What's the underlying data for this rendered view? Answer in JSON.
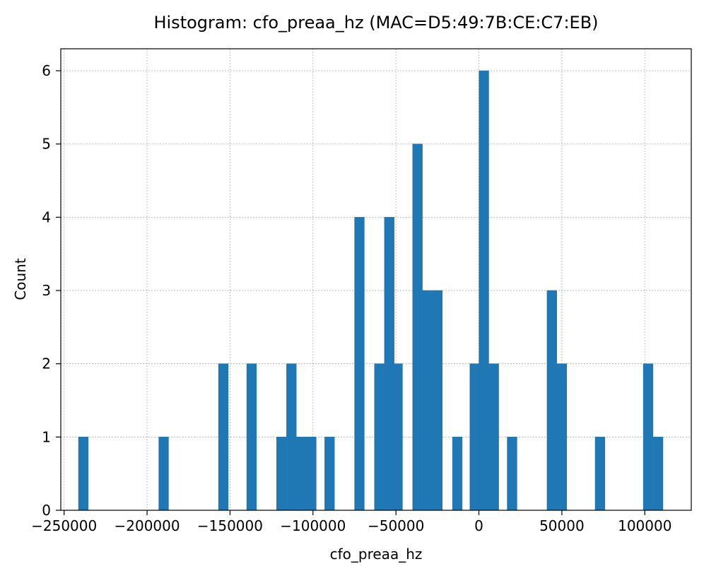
{
  "chart_data": {
    "type": "bar",
    "title": "Histogram: cfo_preaa_hz (MAC=D5:49:7B:CE:C7:EB)",
    "xlabel": "cfo_preaa_hz",
    "ylabel": "Count",
    "xlim": [
      -252000,
      128000
    ],
    "ylim": [
      0,
      6.3
    ],
    "x_ticks": [
      -250000,
      -200000,
      -150000,
      -100000,
      -50000,
      0,
      50000,
      100000
    ],
    "x_tick_labels": [
      "−250000",
      "−200000",
      "−150000",
      "−100000",
      "−50000",
      "0",
      "50000",
      "100000"
    ],
    "y_ticks": [
      0,
      1,
      2,
      3,
      4,
      5,
      6
    ],
    "y_tick_labels": [
      "0",
      "1",
      "2",
      "3",
      "4",
      "5",
      "6"
    ],
    "grid": true,
    "bar_color": "#1f77b4",
    "bin_width": 5850,
    "bins": [
      {
        "x": -238400,
        "count": 1
      },
      {
        "x": -190000,
        "count": 1
      },
      {
        "x": -154000,
        "count": 2
      },
      {
        "x": -137000,
        "count": 2
      },
      {
        "x": -119000,
        "count": 1
      },
      {
        "x": -113000,
        "count": 2
      },
      {
        "x": -107000,
        "count": 1
      },
      {
        "x": -101000,
        "count": 1
      },
      {
        "x": -90000,
        "count": 1
      },
      {
        "x": -72000,
        "count": 4
      },
      {
        "x": -60000,
        "count": 2
      },
      {
        "x": -54000,
        "count": 4
      },
      {
        "x": -49000,
        "count": 2
      },
      {
        "x": -37000,
        "count": 5
      },
      {
        "x": -31000,
        "count": 3
      },
      {
        "x": -25000,
        "count": 3
      },
      {
        "x": -13000,
        "count": 1
      },
      {
        "x": -2500,
        "count": 2
      },
      {
        "x": 3000,
        "count": 6
      },
      {
        "x": 9000,
        "count": 2
      },
      {
        "x": 20000,
        "count": 1
      },
      {
        "x": 44000,
        "count": 3
      },
      {
        "x": 50000,
        "count": 2
      },
      {
        "x": 73000,
        "count": 1
      },
      {
        "x": 102000,
        "count": 2
      },
      {
        "x": 108000,
        "count": 1
      }
    ]
  }
}
